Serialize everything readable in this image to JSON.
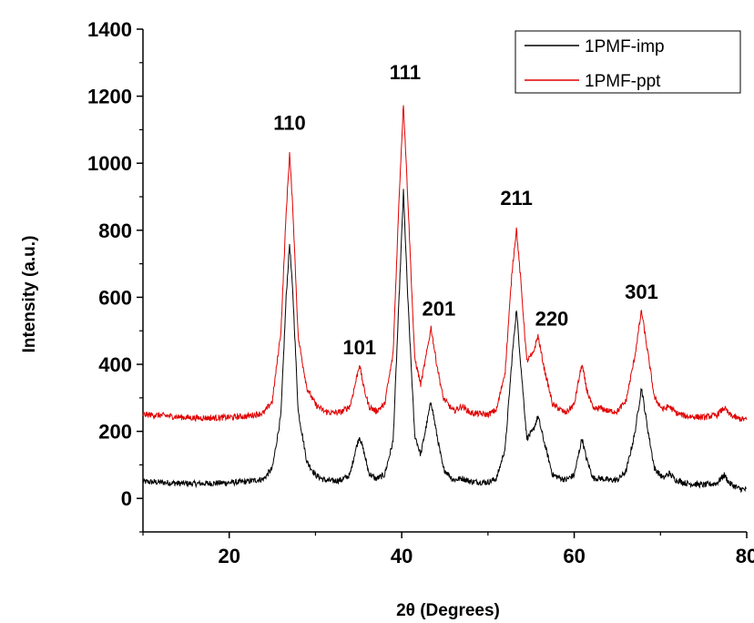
{
  "chart_data": {
    "type": "line",
    "xlabel": "2θ (Degrees)",
    "ylabel": "Intensity (a.u.)",
    "xlim": [
      10,
      80
    ],
    "ylim": [
      -100,
      1400
    ],
    "x_ticks": [
      20,
      40,
      60,
      80
    ],
    "x_tick_labels": [
      "20",
      "40",
      "60",
      "80"
    ],
    "y_ticks": [
      0,
      200,
      400,
      600,
      800,
      1000,
      1200,
      1400
    ],
    "y_tick_labels": [
      "0",
      "200",
      "400",
      "600",
      "800",
      "1000",
      "1200",
      "1400"
    ],
    "legend_position": "top-right",
    "series": [
      {
        "name": "1PMF-imp",
        "color": "#000000",
        "baseline": 50,
        "points": [
          [
            10,
            50
          ],
          [
            12,
            48
          ],
          [
            14,
            45
          ],
          [
            16,
            44
          ],
          [
            18,
            45
          ],
          [
            20,
            47
          ],
          [
            22,
            50
          ],
          [
            24,
            58
          ],
          [
            25,
            90
          ],
          [
            26,
            250
          ],
          [
            26.6,
            600
          ],
          [
            27,
            760
          ],
          [
            27.4,
            600
          ],
          [
            28,
            260
          ],
          [
            29,
            110
          ],
          [
            30,
            70
          ],
          [
            31,
            55
          ],
          [
            32,
            52
          ],
          [
            33,
            55
          ],
          [
            34,
            70
          ],
          [
            34.6,
            140
          ],
          [
            35.1,
            185
          ],
          [
            35.6,
            140
          ],
          [
            36.2,
            75
          ],
          [
            37,
            58
          ],
          [
            38,
            70
          ],
          [
            39,
            170
          ],
          [
            39.7,
            600
          ],
          [
            40.2,
            915
          ],
          [
            40.7,
            600
          ],
          [
            41.5,
            190
          ],
          [
            42.2,
            130
          ],
          [
            42.8,
            210
          ],
          [
            43.4,
            290
          ],
          [
            44,
            200
          ],
          [
            44.8,
            90
          ],
          [
            46,
            55
          ],
          [
            47,
            60
          ],
          [
            48,
            50
          ],
          [
            50,
            48
          ],
          [
            51,
            60
          ],
          [
            52,
            150
          ],
          [
            52.8,
            420
          ],
          [
            53.3,
            565
          ],
          [
            53.8,
            400
          ],
          [
            54.5,
            180
          ],
          [
            55.2,
            200
          ],
          [
            55.8,
            245
          ],
          [
            56.5,
            170
          ],
          [
            57.5,
            70
          ],
          [
            59,
            55
          ],
          [
            60,
            70
          ],
          [
            60.5,
            130
          ],
          [
            60.9,
            180
          ],
          [
            61.4,
            120
          ],
          [
            62.2,
            60
          ],
          [
            63,
            60
          ],
          [
            64,
            55
          ],
          [
            65,
            55
          ],
          [
            66,
            80
          ],
          [
            67,
            190
          ],
          [
            67.8,
            330
          ],
          [
            68.5,
            210
          ],
          [
            69.3,
            90
          ],
          [
            70.3,
            60
          ],
          [
            71,
            75
          ],
          [
            71.8,
            55
          ],
          [
            73,
            45
          ],
          [
            75,
            40
          ],
          [
            76.5,
            45
          ],
          [
            77.4,
            70
          ],
          [
            78,
            45
          ],
          [
            79,
            30
          ],
          [
            80,
            25
          ]
        ]
      },
      {
        "name": "1PMF-ppt",
        "color": "#e00000",
        "baseline": 245,
        "points": [
          [
            10,
            250
          ],
          [
            12,
            248
          ],
          [
            14,
            243
          ],
          [
            16,
            240
          ],
          [
            18,
            240
          ],
          [
            20,
            242
          ],
          [
            22,
            245
          ],
          [
            24,
            255
          ],
          [
            25,
            290
          ],
          [
            26,
            500
          ],
          [
            26.6,
            850
          ],
          [
            27,
            1030
          ],
          [
            27.4,
            850
          ],
          [
            28,
            480
          ],
          [
            29,
            330
          ],
          [
            30,
            280
          ],
          [
            31,
            260
          ],
          [
            32,
            255
          ],
          [
            33,
            258
          ],
          [
            34,
            275
          ],
          [
            34.6,
            340
          ],
          [
            35.1,
            400
          ],
          [
            35.6,
            330
          ],
          [
            36.2,
            275
          ],
          [
            37,
            260
          ],
          [
            38,
            280
          ],
          [
            39,
            430
          ],
          [
            39.7,
            900
          ],
          [
            40.2,
            1180
          ],
          [
            40.7,
            900
          ],
          [
            41.5,
            420
          ],
          [
            42.2,
            340
          ],
          [
            42.8,
            420
          ],
          [
            43.4,
            510
          ],
          [
            44,
            410
          ],
          [
            44.8,
            300
          ],
          [
            46,
            260
          ],
          [
            47,
            275
          ],
          [
            48,
            255
          ],
          [
            50,
            250
          ],
          [
            51,
            265
          ],
          [
            52,
            380
          ],
          [
            52.8,
            680
          ],
          [
            53.3,
            805
          ],
          [
            53.8,
            650
          ],
          [
            54.5,
            410
          ],
          [
            55.2,
            430
          ],
          [
            55.8,
            485
          ],
          [
            56.5,
            390
          ],
          [
            57.5,
            280
          ],
          [
            59,
            255
          ],
          [
            60,
            280
          ],
          [
            60.5,
            350
          ],
          [
            60.9,
            400
          ],
          [
            61.4,
            330
          ],
          [
            62.2,
            265
          ],
          [
            63,
            270
          ],
          [
            64,
            260
          ],
          [
            65,
            260
          ],
          [
            66,
            290
          ],
          [
            67,
            420
          ],
          [
            67.8,
            560
          ],
          [
            68.5,
            440
          ],
          [
            69.3,
            300
          ],
          [
            70.3,
            265
          ],
          [
            71,
            275
          ],
          [
            71.8,
            255
          ],
          [
            73,
            245
          ],
          [
            75,
            242
          ],
          [
            76.5,
            248
          ],
          [
            77.4,
            270
          ],
          [
            78,
            250
          ],
          [
            79,
            238
          ],
          [
            80,
            235
          ]
        ]
      }
    ],
    "annotations": [
      {
        "text": "110",
        "x": 27,
        "y": 1100
      },
      {
        "text": "101",
        "x": 35.1,
        "y": 430
      },
      {
        "text": "111",
        "x": 40.4,
        "y": 1250
      },
      {
        "text": "201",
        "x": 44.3,
        "y": 545
      },
      {
        "text": "211",
        "x": 53.3,
        "y": 875
      },
      {
        "text": "220",
        "x": 57.4,
        "y": 515
      },
      {
        "text": "301",
        "x": 67.8,
        "y": 595
      }
    ]
  }
}
